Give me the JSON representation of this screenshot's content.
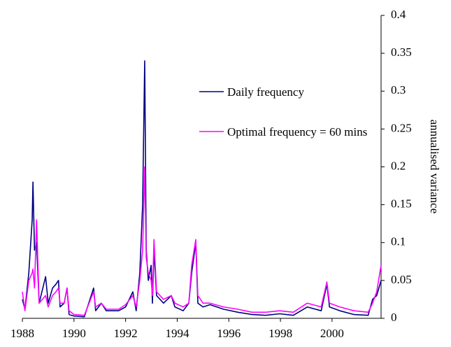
{
  "chart_data": {
    "type": "line",
    "ylabel": "annualised variance",
    "x": [
      1988.0,
      1988.1,
      1988.25,
      1988.38,
      1988.41,
      1988.47,
      1988.55,
      1988.65,
      1988.9,
      1989.0,
      1989.17,
      1989.3,
      1989.4,
      1989.46,
      1989.62,
      1989.73,
      1989.81,
      1990.0,
      1990.4,
      1990.76,
      1990.84,
      1991.06,
      1991.25,
      1991.73,
      1992.0,
      1992.28,
      1992.41,
      1992.55,
      1992.66,
      1992.74,
      1992.8,
      1992.88,
      1992.99,
      1993.04,
      1993.1,
      1993.2,
      1993.47,
      1993.77,
      1993.91,
      1994.23,
      1994.45,
      1994.56,
      1994.72,
      1994.8,
      1995.0,
      1995.27,
      1995.8,
      1996.35,
      1996.9,
      1997.43,
      1997.97,
      1998.5,
      1999.04,
      1999.58,
      1999.8,
      1999.9,
      2000.3,
      2000.85,
      2001.4,
      2001.57,
      2001.73,
      2001.9
    ],
    "series": [
      {
        "name": "Daily frequency",
        "color": "#000080",
        "values": [
          0.025,
          0.012,
          0.06,
          0.13,
          0.18,
          0.09,
          0.1,
          0.02,
          0.055,
          0.02,
          0.04,
          0.045,
          0.05,
          0.015,
          0.02,
          0.04,
          0.005,
          0.003,
          0.002,
          0.04,
          0.01,
          0.02,
          0.01,
          0.01,
          0.015,
          0.035,
          0.01,
          0.06,
          0.15,
          0.34,
          0.09,
          0.05,
          0.07,
          0.02,
          0.09,
          0.03,
          0.02,
          0.03,
          0.015,
          0.01,
          0.02,
          0.06,
          0.1,
          0.02,
          0.015,
          0.018,
          0.012,
          0.008,
          0.005,
          0.004,
          0.006,
          0.004,
          0.015,
          0.01,
          0.045,
          0.015,
          0.01,
          0.005,
          0.004,
          0.025,
          0.03,
          0.05
        ]
      },
      {
        "name": "Optimal frequency = 60 mins",
        "color": "#ff00ff",
        "values": [
          0.035,
          0.01,
          0.05,
          0.06,
          0.065,
          0.04,
          0.13,
          0.02,
          0.03,
          0.015,
          0.03,
          0.035,
          0.04,
          0.02,
          0.02,
          0.04,
          0.01,
          0.005,
          0.004,
          0.035,
          0.015,
          0.02,
          0.012,
          0.012,
          0.018,
          0.03,
          0.015,
          0.05,
          0.09,
          0.2,
          0.08,
          0.06,
          0.05,
          0.03,
          0.104,
          0.035,
          0.025,
          0.03,
          0.02,
          0.015,
          0.02,
          0.07,
          0.104,
          0.03,
          0.02,
          0.02,
          0.015,
          0.012,
          0.008,
          0.008,
          0.01,
          0.008,
          0.02,
          0.015,
          0.048,
          0.02,
          0.015,
          0.01,
          0.008,
          0.02,
          0.035,
          0.07
        ]
      }
    ],
    "xlim": [
      1988,
      2001.9
    ],
    "xticks": [
      1988,
      1990,
      1992,
      1994,
      1996,
      1998,
      2000
    ],
    "ylim": [
      0,
      0.4
    ],
    "yticks": [
      0,
      0.05,
      0.1,
      0.15,
      0.2,
      0.25,
      0.3,
      0.35,
      0.4
    ],
    "legend": "center"
  }
}
